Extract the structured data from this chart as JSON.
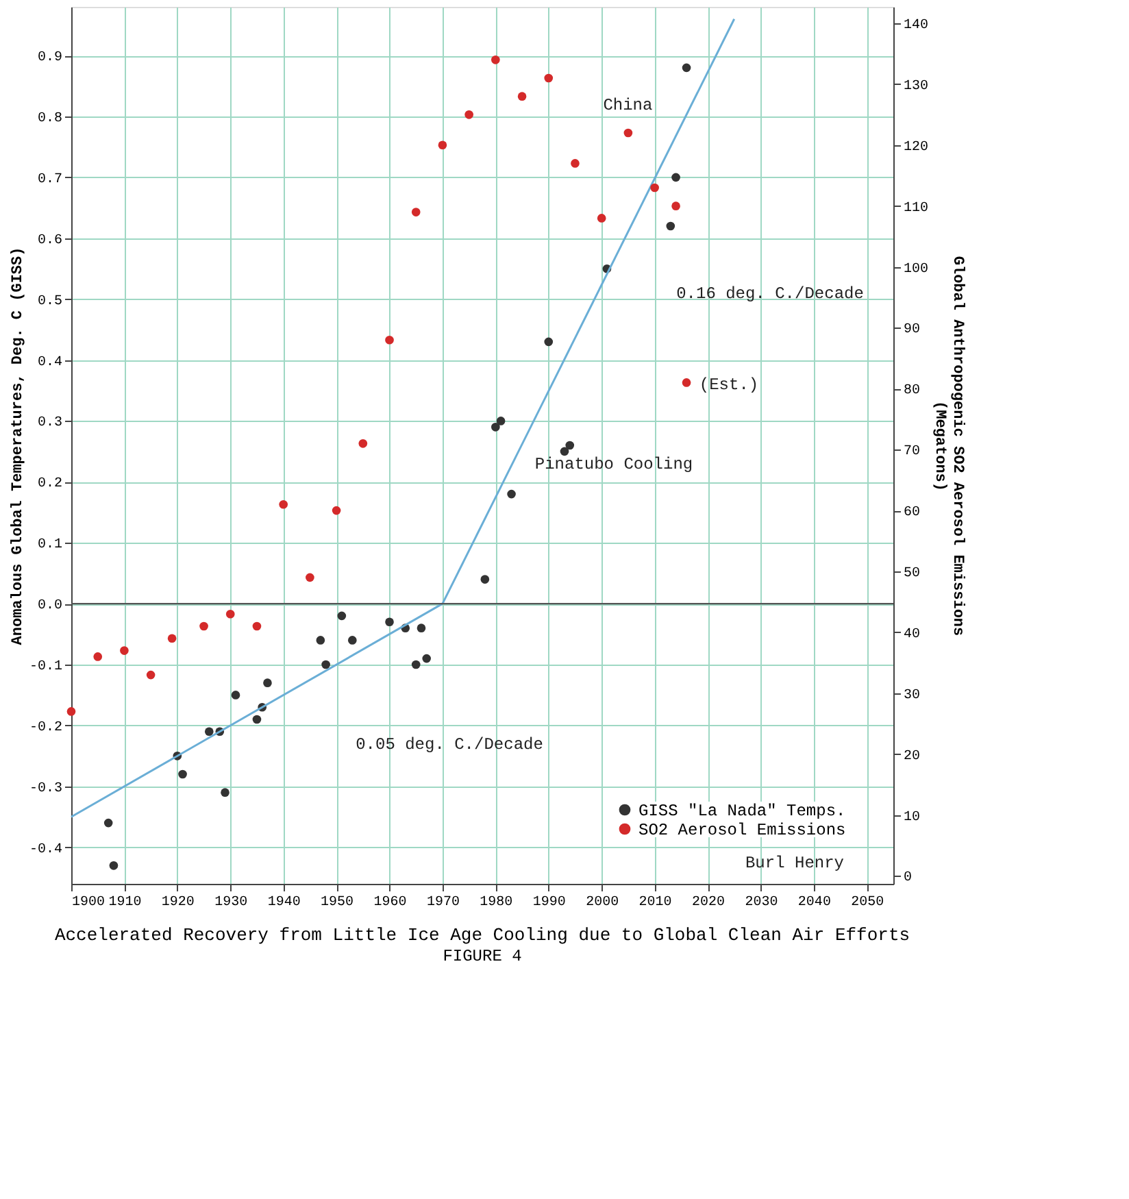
{
  "chart_data": {
    "type": "scatter",
    "title": "Accelerated Recovery from Little Ice Age Cooling due to Global Clean Air Efforts",
    "subtitle": "FIGURE 4",
    "ylabel": "Anomalous Global Temperatures, Deg. C (GISS)",
    "y2label": "Global Anthropogenic SO2 Aerosol Emissions\n(Megatons)",
    "xlim": [
      1900,
      2055
    ],
    "xticks": [
      1900,
      1910,
      1920,
      1930,
      1940,
      1950,
      1960,
      1970,
      1980,
      1990,
      2000,
      2010,
      2020,
      2030,
      2040,
      2050
    ],
    "ylim": [
      -0.46,
      0.98
    ],
    "yticks": [
      -0.4,
      -0.3,
      -0.2,
      -0.1,
      {
        "value": 0,
        "label": "0.0"
      },
      0.1,
      0.2,
      0.3,
      0.4,
      0.5,
      0.6,
      0.7,
      0.8,
      0.9
    ],
    "y2lim": [
      -1.3,
      142.7
    ],
    "y2ticks": [
      0,
      10,
      20,
      30,
      40,
      50,
      60,
      70,
      80,
      90,
      100,
      110,
      120,
      130,
      140
    ],
    "grid": true,
    "legend": "bottom right",
    "marker": "circle",
    "series": [
      {
        "name": "GISS \"La Nada\" Temps.",
        "color": "#333333",
        "x": [
          1907,
          1908,
          1920,
          1921,
          1926,
          1928,
          1929,
          1931,
          1935,
          1936,
          1937,
          1947,
          1948,
          1951,
          1953,
          1960,
          1963,
          1965,
          1966,
          1967,
          1978,
          1980,
          1981,
          1983,
          1990,
          1993,
          1994,
          2001,
          2013,
          2014,
          2016
        ],
        "values": [
          -0.36,
          -0.43,
          -0.25,
          -0.28,
          -0.21,
          -0.21,
          -0.31,
          -0.15,
          -0.19,
          -0.17,
          -0.13,
          -0.06,
          -0.1,
          -0.02,
          -0.06,
          -0.03,
          -0.04,
          -0.1,
          -0.04,
          -0.09,
          0.04,
          0.29,
          0.3,
          0.18,
          0.43,
          0.25,
          0.26,
          0.55,
          0.62,
          0.7,
          0.88
        ]
      },
      {
        "name": "SO2 Aerosol Emissions",
        "color": "#d42a2a",
        "axis": "y2",
        "x": [
          1900,
          1905,
          1910,
          1915,
          1919,
          1925,
          1930,
          1935,
          1940,
          1945,
          1950,
          1955,
          1960,
          1965,
          1970,
          1975,
          1980,
          1985,
          1990,
          1995,
          2000,
          2005,
          2010,
          2014,
          2016
        ],
        "values": [
          27,
          36,
          37,
          33,
          39,
          41,
          43,
          41,
          61,
          49,
          60,
          71,
          88,
          109,
          120,
          125,
          134,
          128,
          131,
          117,
          108,
          122,
          113,
          110,
          81
        ]
      },
      {
        "type": "line",
        "marker": "none",
        "color": "#6aaed6",
        "x": [
          1900,
          1970
        ],
        "values": [
          -0.35,
          0.0
        ]
      },
      {
        "type": "line",
        "marker": "none",
        "color": "#6aaed6",
        "x": [
          1970,
          2025
        ],
        "values": [
          0.0,
          0.96
        ]
      }
    ],
    "ref_lines": [
      {
        "axis": "y",
        "value": 0,
        "color": "#555555"
      }
    ],
    "annotations": [
      "China",
      "Pinatubo Cooling",
      "(Est.)",
      "0.16 deg. C./Decade",
      "0.05 deg. C./Decade",
      "Burl Henry"
    ]
  }
}
